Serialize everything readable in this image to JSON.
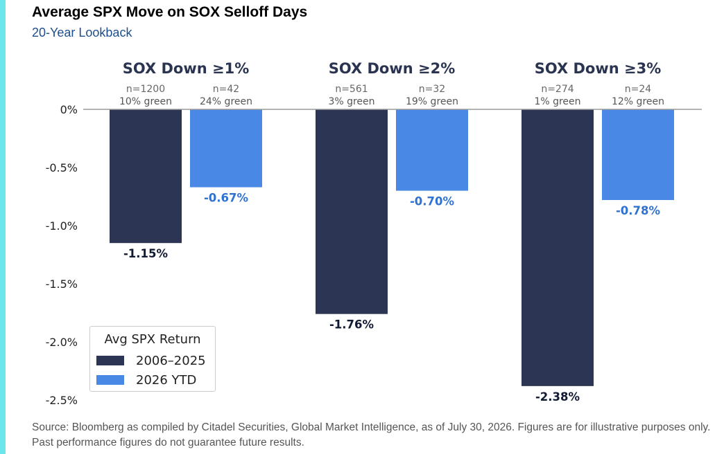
{
  "title": "Average SPX Move on SOX Selloff Days",
  "subtitle": "20-Year Lookback",
  "source": "Source: Bloomberg as compiled by Citadel Securities, Global Market Intelligence, as of July 30, 2026. Figures are for illustrative purposes only. Past performance figures do not guarantee future results.",
  "colors": {
    "accent_strip": "#6be6ea",
    "series_2006_2025": "#2c3553",
    "series_2026_ytd": "#4a88e6",
    "label_2026_ytd": "#2f72d2",
    "label_2006_2025": "#111a33"
  },
  "chart_data": {
    "type": "bar",
    "categories": [
      "SOX Down ≥1%",
      "SOX Down ≥2%",
      "SOX Down ≥3%"
    ],
    "series": [
      {
        "name": "2006–2025",
        "values": [
          -1.15,
          -1.76,
          -2.38
        ],
        "value_labels": [
          "-1.15%",
          "-1.76%",
          "-2.38%"
        ],
        "n_labels": [
          "n=1200",
          "n=561",
          "n=274"
        ],
        "green_labels": [
          "10% green",
          "3% green",
          "1% green"
        ]
      },
      {
        "name": "2026 YTD",
        "values": [
          -0.67,
          -0.7,
          -0.78
        ],
        "value_labels": [
          "-0.67%",
          "-0.70%",
          "-0.78%"
        ],
        "n_labels": [
          "n=42",
          "n=32",
          "n=24"
        ],
        "green_labels": [
          "24% green",
          "19% green",
          "12% green"
        ]
      }
    ],
    "yticks": [
      0,
      -0.5,
      -1.0,
      -1.5,
      -2.0,
      -2.5
    ],
    "ytick_labels": [
      "0%",
      "-0.5%",
      "-1.0%",
      "-1.5%",
      "-2.0%",
      "-2.5%"
    ],
    "ylim": [
      -2.5,
      0
    ],
    "xlabel": "",
    "ylabel": "",
    "grid": false,
    "legend": {
      "title": "Avg SPX Return",
      "placement": "bottom-left"
    }
  }
}
